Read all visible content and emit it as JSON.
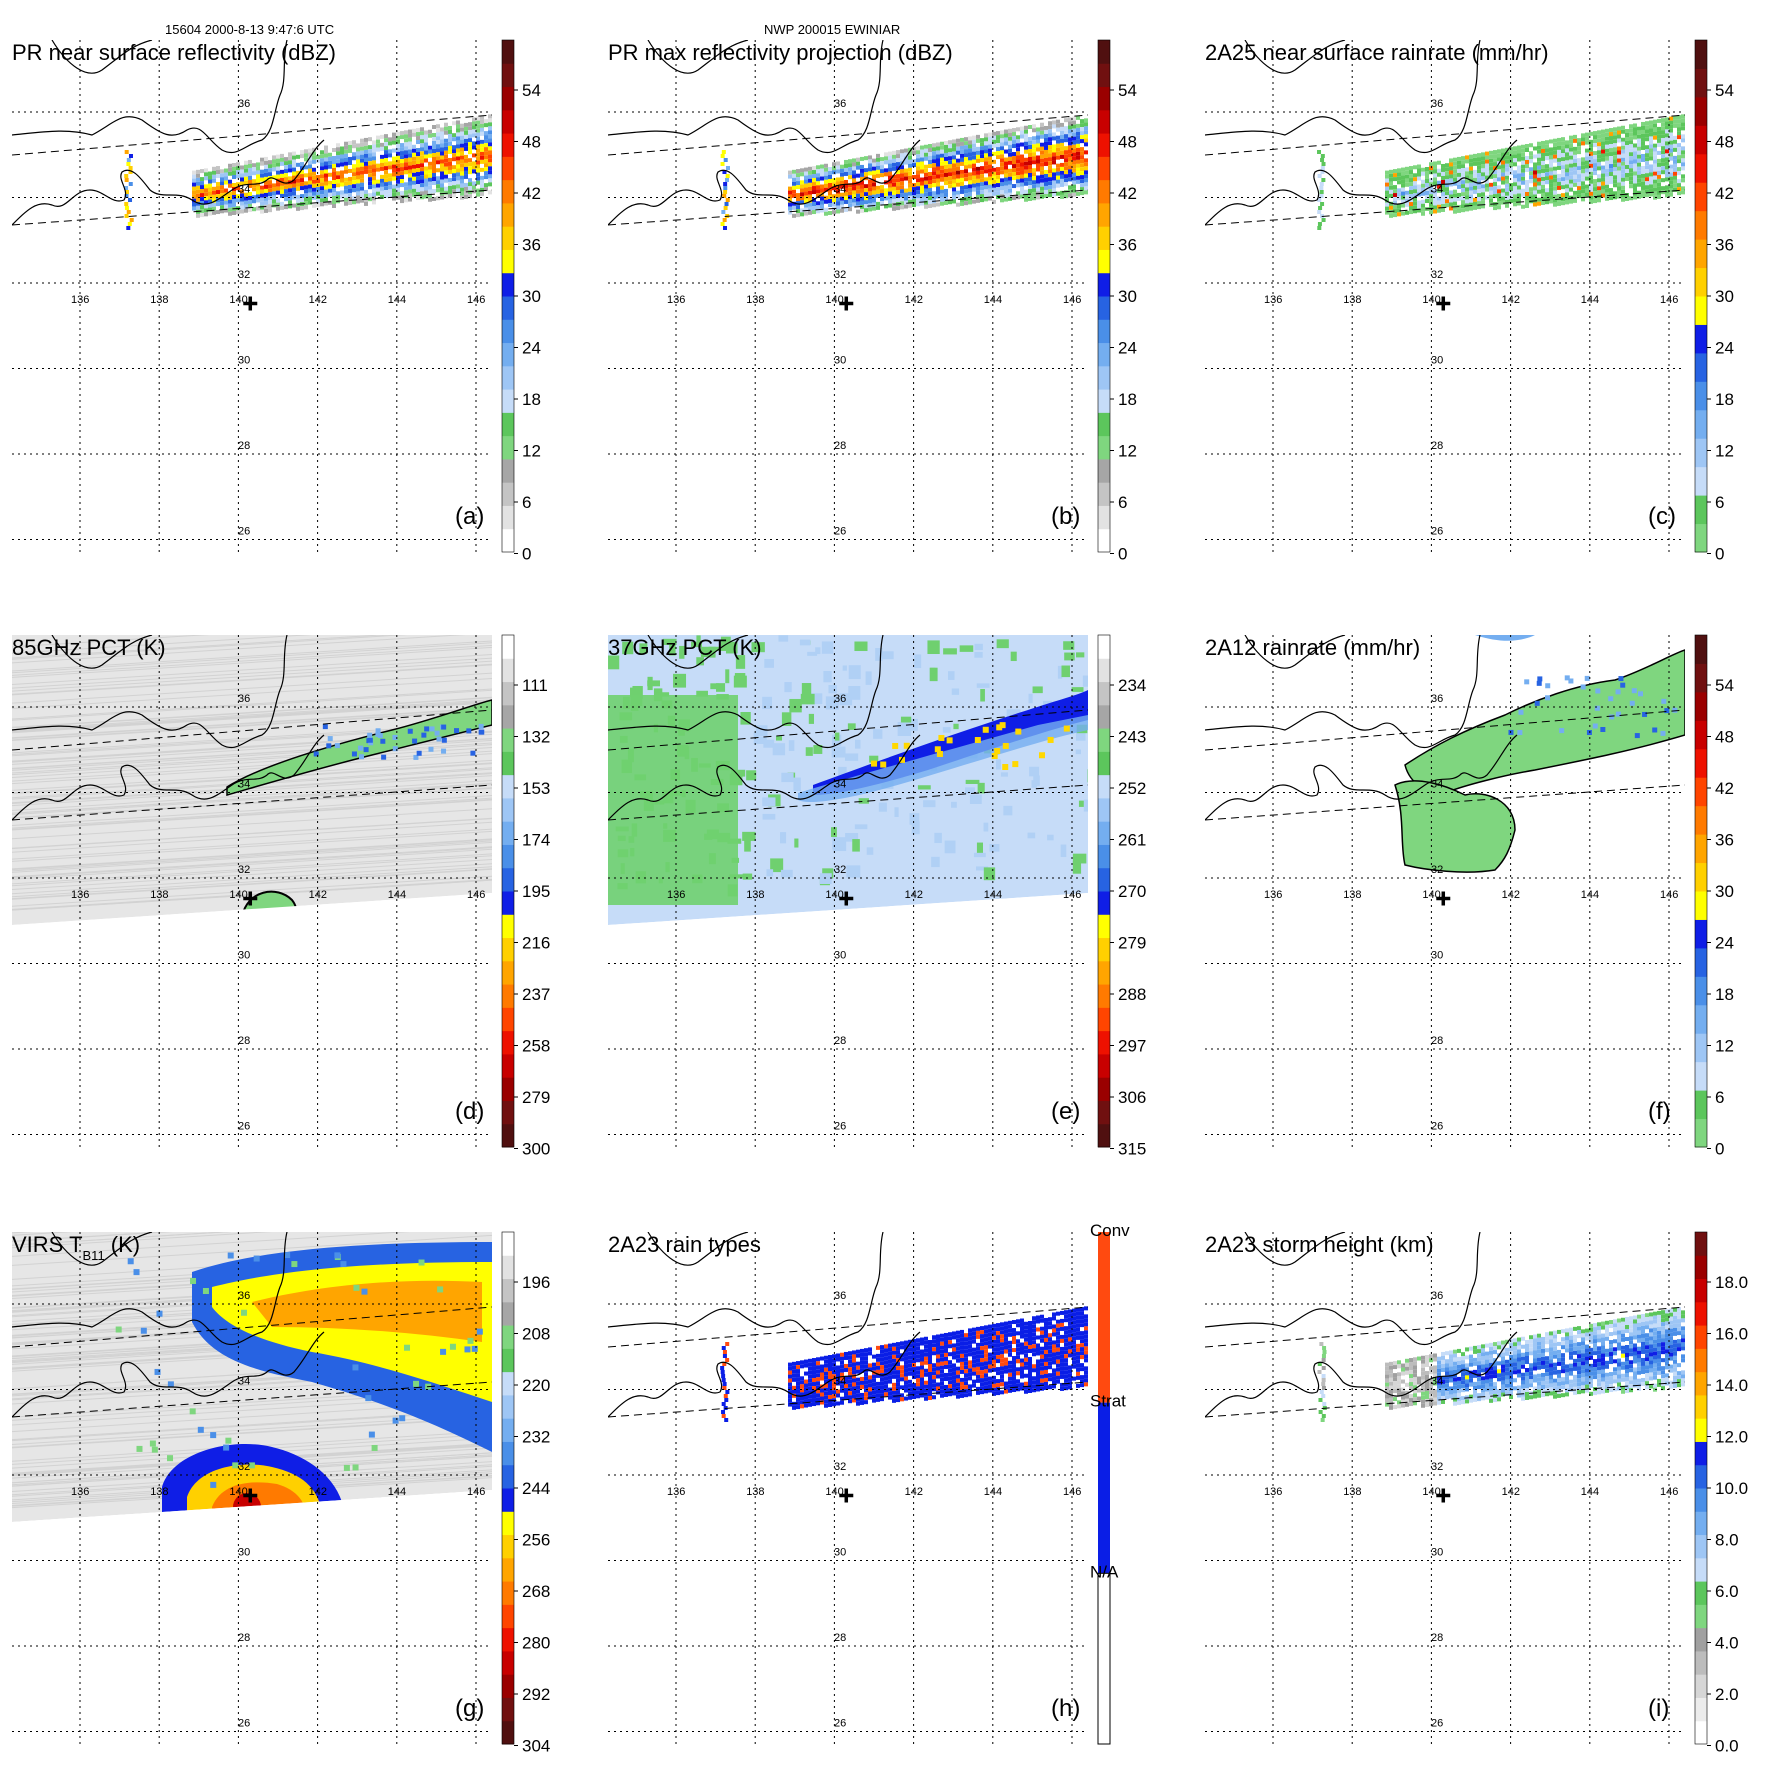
{
  "header": {
    "orbit_info": "15604 2000-8-13 9:47:6 UTC",
    "storm_info": "NWP 200015 EWINIAR"
  },
  "lat_labels": [
    "36",
    "34",
    "32",
    "30",
    "28",
    "26"
  ],
  "lon_labels": [
    "136",
    "138",
    "140",
    "142",
    "144",
    "146"
  ],
  "storm_center": {
    "lon": 140.3,
    "lat": 31.8
  },
  "panels": [
    {
      "id": "a",
      "label": "(a)",
      "title": "PR near surface reflectivity (dBZ)",
      "swath": "pr",
      "field": "pr_near",
      "colorbar": {
        "type": "dbz",
        "labels": [
          "54",
          "48",
          "42",
          "36",
          "30",
          "24",
          "18",
          "12",
          "6",
          "0"
        ]
      }
    },
    {
      "id": "b",
      "label": "(b)",
      "title": "PR max reflectivity projection (dBZ)",
      "swath": "pr",
      "field": "pr_max",
      "colorbar": {
        "type": "dbz",
        "labels": [
          "54",
          "48",
          "42",
          "36",
          "30",
          "24",
          "18",
          "12",
          "6",
          "0"
        ]
      }
    },
    {
      "id": "c",
      "label": "(c)",
      "title": "2A25 near surface rainrate (mm/hr)",
      "swath": "pr",
      "field": "pr_rain",
      "colorbar": {
        "type": "rain",
        "labels": [
          "54",
          "48",
          "42",
          "36",
          "30",
          "24",
          "18",
          "12",
          "6",
          "0"
        ]
      }
    },
    {
      "id": "d",
      "label": "(d)",
      "title": "85GHz PCT (K)",
      "swath": "tmi",
      "field": "pct85",
      "colorbar": {
        "type": "temp",
        "labels": [
          "111",
          "132",
          "153",
          "174",
          "195",
          "216",
          "237",
          "258",
          "279",
          "300"
        ]
      }
    },
    {
      "id": "e",
      "label": "(e)",
      "title": "37GHz PCT (K)",
      "swath": "tmi",
      "field": "pct37",
      "colorbar": {
        "type": "temp",
        "labels": [
          "234",
          "243",
          "252",
          "261",
          "270",
          "279",
          "288",
          "297",
          "306",
          "315"
        ]
      }
    },
    {
      "id": "f",
      "label": "(f)",
      "title": "2A12 rainrate (mm/hr)",
      "swath": "none",
      "field": "tmi_rain",
      "colorbar": {
        "type": "rain",
        "labels": [
          "54",
          "48",
          "42",
          "36",
          "30",
          "24",
          "18",
          "12",
          "6",
          "0"
        ]
      }
    },
    {
      "id": "g",
      "label": "(g)",
      "title": "VIRS T",
      "title_sub": "B11",
      "title_end": " (K)",
      "swath": "tmi",
      "field": "virs",
      "colorbar": {
        "type": "temp",
        "labels": [
          "196",
          "208",
          "220",
          "232",
          "244",
          "256",
          "268",
          "280",
          "292",
          "304"
        ]
      }
    },
    {
      "id": "h",
      "label": "(h)",
      "title": "2A23 rain types",
      "swath": "pr",
      "field": "raintype",
      "colorbar": {
        "type": "raintype",
        "labels": [
          "Conv",
          "Strat",
          "N/A"
        ]
      }
    },
    {
      "id": "i",
      "label": "(i)",
      "title": "2A23 storm height (km)",
      "swath": "pr",
      "field": "stormht",
      "colorbar": {
        "type": "height",
        "labels": [
          "18.0",
          "16.0",
          "14.0",
          "12.0",
          "10.0",
          "8.0",
          "6.0",
          "4.0",
          "2.0",
          "0.0"
        ]
      }
    }
  ],
  "colors": {
    "map_line": "#000000",
    "dbz_scale": [
      "#ffffff",
      "#e2e2e2",
      "#c4c4c4",
      "#a6a6a6",
      "#7fd67f",
      "#5cc65c",
      "#c6dcf8",
      "#9ec6f5",
      "#74aef0",
      "#4a8fe8",
      "#2763e2",
      "#0f1ee6",
      "#ffff00",
      "#ffd000",
      "#ffa500",
      "#ff7a00",
      "#ff4500",
      "#ee1100",
      "#c80000",
      "#9a0000",
      "#701010",
      "#501010"
    ],
    "rain_scale": [
      "#7fd67f",
      "#5cc65c",
      "#c6dcf8",
      "#9ec6f5",
      "#74aef0",
      "#4a8fe8",
      "#2763e2",
      "#0f1ee6",
      "#ffff00",
      "#ffd000",
      "#ffa500",
      "#ff7a00",
      "#ff4500",
      "#ee1100",
      "#c80000",
      "#9a0000",
      "#701010",
      "#501010"
    ],
    "height_scale": [
      "#ffffff",
      "#ececec",
      "#d6d6d6",
      "#bcbcbc",
      "#a0a0a0",
      "#7fd67f",
      "#5cc65c",
      "#c6dcf8",
      "#9ec6f5",
      "#74aef0",
      "#4a8fe8",
      "#2763e2",
      "#0f1ee6",
      "#ffff00",
      "#ffd000",
      "#ffa500",
      "#ff7a00",
      "#ff4500",
      "#ee1100",
      "#c80000",
      "#9a0000",
      "#701010"
    ],
    "conv": "#ff4a10",
    "strat": "#0a1ee6"
  }
}
